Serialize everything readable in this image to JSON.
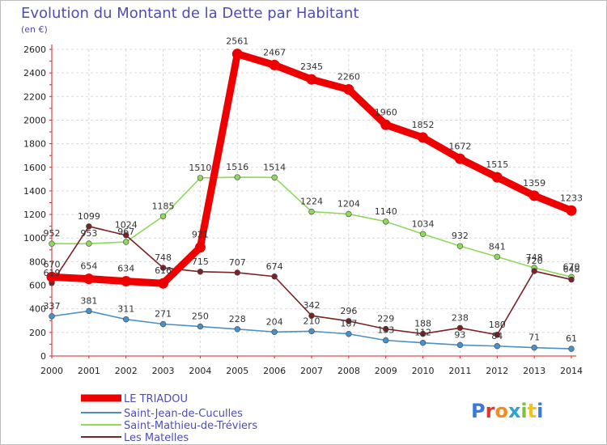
{
  "chart_data": {
    "type": "line",
    "title": "Evolution du Montant de la Dette par Habitant",
    "subtitle": "(en €)",
    "x": [
      "2000",
      "2001",
      "2002",
      "2003",
      "2004",
      "2005",
      "2006",
      "2007",
      "2008",
      "2009",
      "2010",
      "2011",
      "2012",
      "2013",
      "2014"
    ],
    "ylim": [
      0,
      2600
    ],
    "yticks": [
      0,
      200,
      400,
      600,
      800,
      1000,
      1200,
      1400,
      1600,
      1800,
      2000,
      2200,
      2400,
      2600
    ],
    "grid": true,
    "legend_position": "bottom-left",
    "series": [
      {
        "name": "LE TRIADOU",
        "color": "#ee0000",
        "values": [
          670,
          654,
          634,
          616,
          921,
          2561,
          2467,
          2345,
          2260,
          1960,
          1852,
          1672,
          1515,
          1359,
          1233
        ]
      },
      {
        "name": "Saint-Jean-de-Cuculles",
        "color": "#4a90c8",
        "values": [
          337,
          381,
          311,
          271,
          250,
          228,
          204,
          210,
          187,
          133,
          112,
          93,
          84,
          71,
          61
        ]
      },
      {
        "name": "Saint-Mathieu-de-Tréviers",
        "color": "#8ed85a",
        "values": [
          952,
          953,
          967,
          1185,
          1510,
          1516,
          1514,
          1224,
          1204,
          1140,
          1034,
          932,
          841,
          748,
          670
        ]
      },
      {
        "name": "Les Matelles",
        "color": "#7a2226",
        "values": [
          619,
          1099,
          1024,
          748,
          715,
          707,
          674,
          342,
          296,
          229,
          188,
          238,
          180,
          720,
          648
        ]
      }
    ]
  },
  "logo": {
    "text": "Proxiti"
  }
}
